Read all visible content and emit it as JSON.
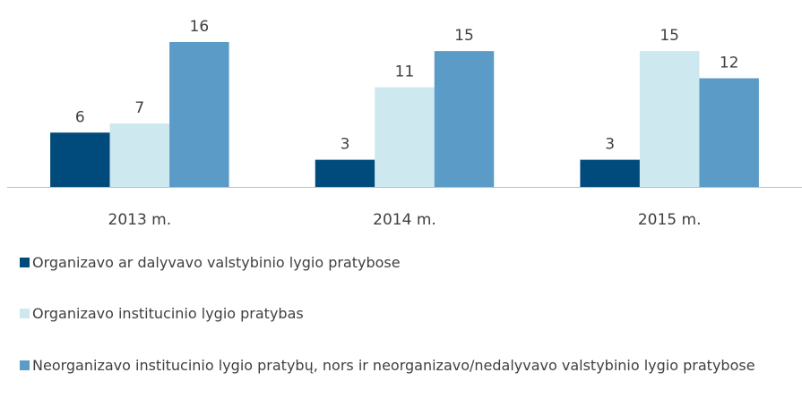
{
  "chart_data": {
    "type": "bar",
    "categories": [
      "2013 m.",
      "2014 m.",
      "2015 m."
    ],
    "series": [
      {
        "name": "Organizavo ar dalyvavo valstybinio lygio pratybose",
        "color": "#004b7c",
        "values": [
          6,
          3,
          3
        ]
      },
      {
        "name": "Organizavo institucinio lygio pratybas",
        "color": "#cde8ef",
        "values": [
          7,
          11,
          15
        ]
      },
      {
        "name": "Neorganizavo institucinio lygio pratybų, nors ir neorganizavo/nedalyvavo valstybinio lygio pratybose",
        "color": "#5b9bc8",
        "values": [
          16,
          15,
          12
        ]
      }
    ],
    "ylim": [
      0,
      16
    ],
    "legend": "bottom"
  }
}
